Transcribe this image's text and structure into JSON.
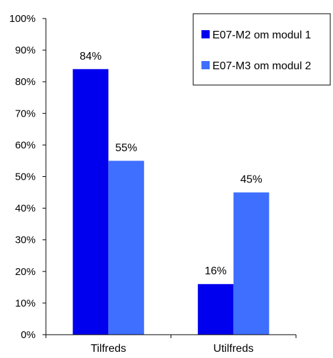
{
  "chart_data": {
    "type": "bar",
    "title": "",
    "xlabel": "",
    "ylabel": "",
    "ylim": [
      0,
      100
    ],
    "y_ticks": [
      "0%",
      "10%",
      "20%",
      "30%",
      "40%",
      "50%",
      "60%",
      "70%",
      "80%",
      "90%",
      "100%"
    ],
    "categories": [
      "Tilfreds",
      "Utilfreds"
    ],
    "series": [
      {
        "name": "E07-M2 om modul 1",
        "values": [
          84,
          16
        ],
        "labels": [
          "84%",
          "16%"
        ],
        "color": "#0000ee"
      },
      {
        "name": "E07-M3 om modul 2",
        "values": [
          55,
          45
        ],
        "labels": [
          "55%",
          "45%"
        ],
        "color": "#3f6fff"
      }
    ],
    "legend_position": "top-right",
    "grid": false
  }
}
